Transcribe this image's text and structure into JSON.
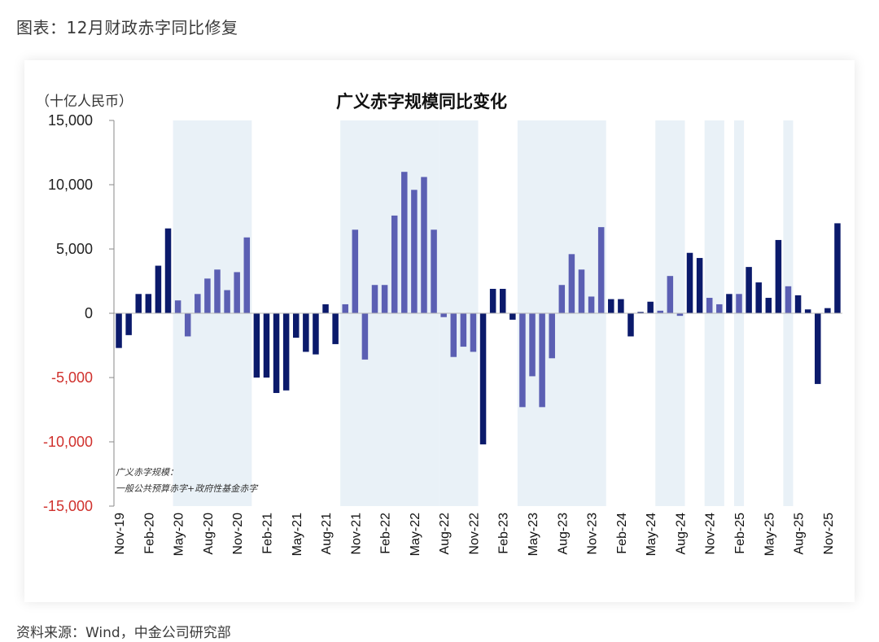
{
  "caption": "图表：12月财政赤字同比修复",
  "source": "资料来源：Wind，中金公司研究部",
  "colors": {
    "positive_tick": "#222222",
    "negative_tick": "#d0312d",
    "bar_dark": "#0b1a6b",
    "bar_light": "#5b5fb3",
    "shade": "#e9f1f7"
  },
  "chart_data": {
    "type": "bar",
    "title": "广义赤字规模同比变化",
    "ylabel": "（十亿人民币）",
    "ylim": [
      -15000,
      15000
    ],
    "yticks": [
      "15,000",
      "10,000",
      "5,000",
      "0",
      "-5,000",
      "-10,000",
      "-15,000"
    ],
    "ytick_values": [
      15000,
      10000,
      5000,
      0,
      -5000,
      -10000,
      -15000
    ],
    "annotation_line1": "广义赤字规模：",
    "annotation_line2": "一般公共预算赤字+政府性基金赤字",
    "xtick_labels": [
      "Nov-19",
      "Feb-20",
      "May-20",
      "Aug-20",
      "Nov-20",
      "Feb-21",
      "May-21",
      "Aug-21",
      "Nov-21",
      "Feb-22",
      "May-22",
      "Aug-22",
      "Nov-22",
      "Feb-23",
      "May-23",
      "Aug-23",
      "Nov-23",
      "Feb-24",
      "May-24",
      "Aug-24",
      "Nov-24",
      "Feb-25",
      "May-25",
      "Aug-25",
      "Nov-25"
    ],
    "categories": [
      "Nov-19",
      "Dec-19",
      "Jan-20",
      "Feb-20",
      "Mar-20",
      "Apr-20",
      "May-20",
      "Jun-20",
      "Jul-20",
      "Aug-20",
      "Sep-20",
      "Oct-20",
      "Nov-20",
      "Dec-20",
      "Jan-21",
      "Feb-21",
      "Mar-21",
      "Apr-21",
      "May-21",
      "Jun-21",
      "Jul-21",
      "Aug-21",
      "Sep-21",
      "Oct-21",
      "Nov-21",
      "Dec-21",
      "Jan-22",
      "Feb-22",
      "Mar-22",
      "Apr-22",
      "May-22",
      "Jun-22",
      "Jul-22",
      "Aug-22",
      "Sep-22",
      "Oct-22",
      "Nov-22",
      "Dec-22",
      "Jan-23",
      "Feb-23",
      "Mar-23",
      "Apr-23",
      "May-23",
      "Jun-23",
      "Jul-23",
      "Aug-23",
      "Sep-23",
      "Oct-23",
      "Nov-23",
      "Dec-23",
      "Jan-24",
      "Feb-24",
      "Mar-24",
      "Apr-24",
      "May-24",
      "Jun-24",
      "Jul-24",
      "Aug-24",
      "Sep-24",
      "Oct-24",
      "Nov-24",
      "Dec-24",
      "Jan-25",
      "Feb-25",
      "Mar-25",
      "Apr-25",
      "May-25",
      "Jun-25",
      "Jul-25",
      "Aug-25",
      "Sep-25",
      "Oct-25",
      "Nov-25",
      "Dec-25"
    ],
    "values": [
      -2700,
      -1700,
      1500,
      1500,
      3700,
      6600,
      1000,
      -1800,
      1500,
      2700,
      3400,
      1800,
      3200,
      5900,
      -5000,
      -5000,
      -6200,
      -6000,
      -1900,
      -3000,
      -3200,
      700,
      -2400,
      700,
      6500,
      -3600,
      2200,
      2200,
      7600,
      11000,
      9600,
      10600,
      6500,
      -300,
      -3400,
      -2600,
      -3000,
      -10200,
      1900,
      1900,
      -500,
      -7300,
      -4900,
      -7300,
      -3500,
      2200,
      4600,
      3400,
      1300,
      6700,
      1100,
      1100,
      -1800,
      100,
      900,
      200,
      2900,
      -200,
      4700,
      4300,
      1200,
      700,
      1500,
      1500,
      3600,
      2400,
      1200,
      5700,
      2100,
      1400,
      300,
      -5500,
      400,
      7000
    ],
    "shaded_ranges": [
      [
        6,
        13
      ],
      [
        23,
        32
      ],
      [
        33,
        36
      ],
      [
        41,
        49
      ],
      [
        55,
        57
      ],
      [
        60,
        61
      ],
      [
        63,
        63
      ],
      [
        68,
        68
      ]
    ]
  }
}
